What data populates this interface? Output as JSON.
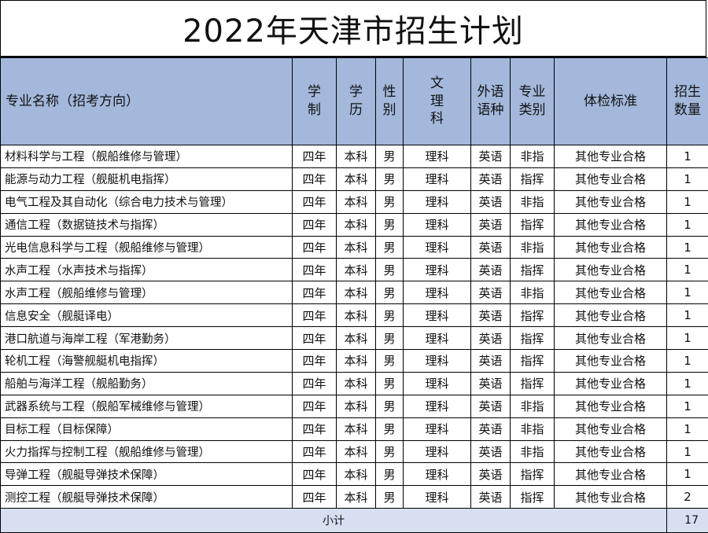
{
  "title": "2022年天津市招生计划",
  "headers": {
    "name": "专业名称（招考方向）",
    "duration": "学制",
    "degree": "学历",
    "gender": "性别",
    "stream": "文理科",
    "language": "外语语种",
    "category": "专业类别",
    "physical": "体检标准",
    "quota": "招生数量"
  },
  "rows": [
    {
      "name": "材料科学与工程（舰船维修与管理）",
      "duration": "四年",
      "degree": "本科",
      "gender": "男",
      "stream": "理科",
      "language": "英语",
      "category": "非指",
      "physical": "其他专业合格",
      "quota": "1"
    },
    {
      "name": "能源与动力工程（舰艇机电指挥）",
      "duration": "四年",
      "degree": "本科",
      "gender": "男",
      "stream": "理科",
      "language": "英语",
      "category": "指挥",
      "physical": "其他专业合格",
      "quota": "1"
    },
    {
      "name": "电气工程及其自动化（综合电力技术与管理）",
      "duration": "四年",
      "degree": "本科",
      "gender": "男",
      "stream": "理科",
      "language": "英语",
      "category": "非指",
      "physical": "其他专业合格",
      "quota": "1"
    },
    {
      "name": "通信工程（数据链技术与指挥）",
      "duration": "四年",
      "degree": "本科",
      "gender": "男",
      "stream": "理科",
      "language": "英语",
      "category": "指挥",
      "physical": "其他专业合格",
      "quota": "1"
    },
    {
      "name": "光电信息科学与工程（舰船维修与管理）",
      "duration": "四年",
      "degree": "本科",
      "gender": "男",
      "stream": "理科",
      "language": "英语",
      "category": "非指",
      "physical": "其他专业合格",
      "quota": "1"
    },
    {
      "name": "水声工程（水声技术与指挥）",
      "duration": "四年",
      "degree": "本科",
      "gender": "男",
      "stream": "理科",
      "language": "英语",
      "category": "指挥",
      "physical": "其他专业合格",
      "quota": "1"
    },
    {
      "name": "水声工程（舰船维修与管理）",
      "duration": "四年",
      "degree": "本科",
      "gender": "男",
      "stream": "理科",
      "language": "英语",
      "category": "非指",
      "physical": "其他专业合格",
      "quota": "1"
    },
    {
      "name": "信息安全（舰艇译电）",
      "duration": "四年",
      "degree": "本科",
      "gender": "男",
      "stream": "理科",
      "language": "英语",
      "category": "指挥",
      "physical": "其他专业合格",
      "quota": "1"
    },
    {
      "name": "港口航道与海岸工程（军港勤务）",
      "duration": "四年",
      "degree": "本科",
      "gender": "男",
      "stream": "理科",
      "language": "英语",
      "category": "指挥",
      "physical": "其他专业合格",
      "quota": "1"
    },
    {
      "name": "轮机工程（海警舰艇机电指挥）",
      "duration": "四年",
      "degree": "本科",
      "gender": "男",
      "stream": "理科",
      "language": "英语",
      "category": "指挥",
      "physical": "其他专业合格",
      "quota": "1"
    },
    {
      "name": "船舶与海洋工程（舰船勤务）",
      "duration": "四年",
      "degree": "本科",
      "gender": "男",
      "stream": "理科",
      "language": "英语",
      "category": "指挥",
      "physical": "其他专业合格",
      "quota": "1"
    },
    {
      "name": "武器系统与工程（舰船军械维修与管理）",
      "duration": "四年",
      "degree": "本科",
      "gender": "男",
      "stream": "理科",
      "language": "英语",
      "category": "非指",
      "physical": "其他专业合格",
      "quota": "1"
    },
    {
      "name": "目标工程（目标保障）",
      "duration": "四年",
      "degree": "本科",
      "gender": "男",
      "stream": "理科",
      "language": "英语",
      "category": "非指",
      "physical": "其他专业合格",
      "quota": "1"
    },
    {
      "name": "火力指挥与控制工程（舰船维修与管理）",
      "duration": "四年",
      "degree": "本科",
      "gender": "男",
      "stream": "理科",
      "language": "英语",
      "category": "非指",
      "physical": "其他专业合格",
      "quota": "1"
    },
    {
      "name": "导弹工程（舰艇导弹技术保障）",
      "duration": "四年",
      "degree": "本科",
      "gender": "男",
      "stream": "理科",
      "language": "英语",
      "category": "指挥",
      "physical": "其他专业合格",
      "quota": "1"
    },
    {
      "name": "测控工程（舰艇导弹技术保障）",
      "duration": "四年",
      "degree": "本科",
      "gender": "男",
      "stream": "理科",
      "language": "英语",
      "category": "指挥",
      "physical": "其他专业合格",
      "quota": "2"
    }
  ],
  "footer": {
    "label": "小计",
    "total": "17"
  }
}
